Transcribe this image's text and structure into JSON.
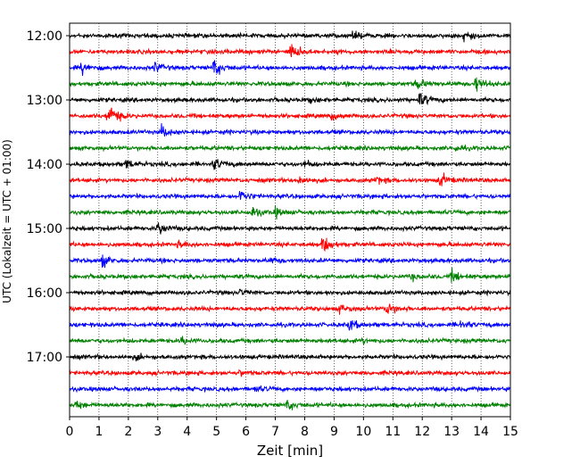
{
  "chart_data": {
    "type": "line",
    "title": "",
    "xlabel": "Zeit  [min]",
    "ylabel": "UTC (Lokalzeit = UTC + 01:00)",
    "xlim": [
      0,
      15
    ],
    "x_ticks": [
      "0",
      "1",
      "2",
      "3",
      "4",
      "5",
      "6",
      "7",
      "8",
      "9",
      "10",
      "11",
      "12",
      "13",
      "14",
      "15"
    ],
    "y_tick_labels": [
      "12:00",
      "13:00",
      "14:00",
      "15:00",
      "16:00",
      "17:00"
    ],
    "grid": "vertical dotted",
    "series_colors": [
      "#000000",
      "#ff0000",
      "#0000ff",
      "#008000"
    ],
    "traces": [
      {
        "start": "12:00",
        "color": "#000000",
        "events": [
          [
            9.6,
            0.35
          ],
          [
            13.4,
            0.4
          ]
        ]
      },
      {
        "start": "12:15",
        "color": "#ff0000",
        "events": [
          [
            7.5,
            0.9
          ]
        ]
      },
      {
        "start": "12:30",
        "color": "#0000ff",
        "events": [
          [
            0.4,
            0.5
          ],
          [
            2.9,
            0.4
          ],
          [
            4.9,
            0.75
          ]
        ]
      },
      {
        "start": "12:45",
        "color": "#008000",
        "events": [
          [
            11.8,
            0.5
          ],
          [
            13.8,
            0.7
          ]
        ]
      },
      {
        "start": "13:00",
        "color": "#000000",
        "events": [
          [
            11.9,
            0.6
          ],
          [
            8.2,
            0.2
          ]
        ]
      },
      {
        "start": "13:15",
        "color": "#ff0000",
        "events": [
          [
            1.3,
            1.2
          ],
          [
            8.9,
            0.3
          ]
        ]
      },
      {
        "start": "13:30",
        "color": "#0000ff",
        "events": [
          [
            3.1,
            0.5
          ]
        ]
      },
      {
        "start": "13:45",
        "color": "#008000",
        "events": [
          [
            13.1,
            0.2
          ]
        ]
      },
      {
        "start": "14:00",
        "color": "#000000",
        "events": [
          [
            1.9,
            0.4
          ],
          [
            4.9,
            0.55
          ],
          [
            8.0,
            0.25
          ]
        ]
      },
      {
        "start": "14:15",
        "color": "#ff0000",
        "events": [
          [
            12.6,
            0.6
          ],
          [
            7.8,
            0.35
          ],
          [
            10.4,
            0.3
          ]
        ]
      },
      {
        "start": "14:30",
        "color": "#0000ff",
        "events": [
          [
            5.8,
            0.55
          ]
        ]
      },
      {
        "start": "14:45",
        "color": "#008000",
        "events": [
          [
            6.2,
            0.45
          ],
          [
            7.0,
            0.35
          ]
        ]
      },
      {
        "start": "15:00",
        "color": "#000000",
        "events": [
          [
            3.0,
            0.6
          ]
        ]
      },
      {
        "start": "15:15",
        "color": "#ff0000",
        "events": [
          [
            8.6,
            0.7
          ],
          [
            3.7,
            0.25
          ]
        ]
      },
      {
        "start": "15:30",
        "color": "#0000ff",
        "events": [
          [
            1.1,
            0.5
          ],
          [
            6.8,
            0.2
          ]
        ]
      },
      {
        "start": "15:45",
        "color": "#008000",
        "events": [
          [
            13.0,
            0.45
          ],
          [
            11.6,
            0.25
          ]
        ]
      },
      {
        "start": "16:00",
        "color": "#000000",
        "events": [
          [
            5.8,
            0.25
          ]
        ]
      },
      {
        "start": "16:15",
        "color": "#ff0000",
        "events": [
          [
            10.8,
            0.6
          ],
          [
            9.2,
            0.35
          ]
        ]
      },
      {
        "start": "16:30",
        "color": "#0000ff",
        "events": [
          [
            9.5,
            0.5
          ],
          [
            13.3,
            0.35
          ]
        ]
      },
      {
        "start": "16:45",
        "color": "#008000",
        "events": [
          [
            3.8,
            0.25
          ],
          [
            9.9,
            0.2
          ]
        ]
      },
      {
        "start": "17:00",
        "color": "#000000",
        "events": [
          [
            2.2,
            0.25
          ]
        ]
      },
      {
        "start": "17:15",
        "color": "#ff0000",
        "events": [
          [
            5.8,
            0.2
          ]
        ]
      },
      {
        "start": "17:30",
        "color": "#0000ff",
        "events": [
          [
            6.3,
            0.2
          ]
        ]
      },
      {
        "start": "17:45",
        "color": "#008000",
        "events": [
          [
            0.2,
            0.35
          ],
          [
            7.4,
            0.4
          ]
        ]
      }
    ]
  }
}
